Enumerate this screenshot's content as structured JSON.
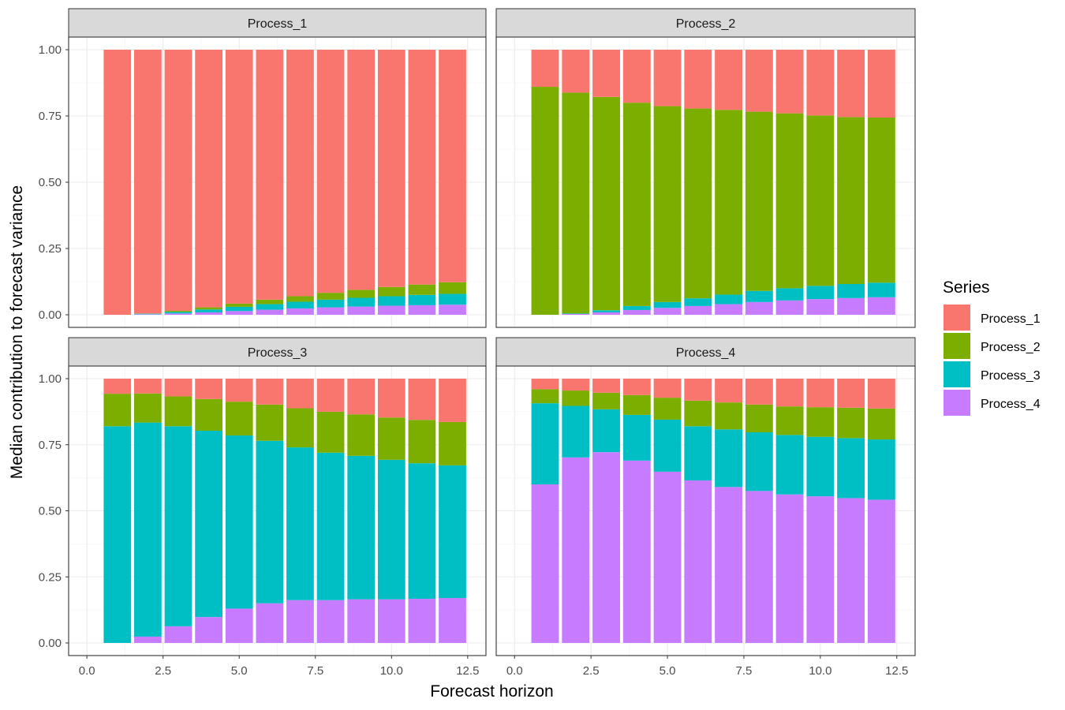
{
  "chart_data": {
    "type": "bar",
    "stacked": true,
    "facets": [
      "Process_1",
      "Process_2",
      "Process_3",
      "Process_4"
    ],
    "x": [
      1,
      2,
      3,
      4,
      5,
      6,
      7,
      8,
      9,
      10,
      11,
      12
    ],
    "xlim": [
      0,
      12.5
    ],
    "ylim": [
      0,
      1
    ],
    "xticks": [
      "0.0",
      "2.5",
      "5.0",
      "7.5",
      "10.0",
      "12.5"
    ],
    "xtick_values": [
      0,
      2.5,
      5,
      7.5,
      10,
      12.5
    ],
    "yticks": [
      "0.00",
      "0.25",
      "0.50",
      "0.75",
      "1.00"
    ],
    "ytick_values": [
      0,
      0.25,
      0.5,
      0.75,
      1
    ],
    "xlabel": "Forecast horizon",
    "ylabel": "Median contribution to forecast variance",
    "legend": {
      "title": "Series",
      "position": "right",
      "entries": [
        "Process_1",
        "Process_2",
        "Process_3",
        "Process_4"
      ]
    },
    "colors": {
      "Process_1": "#F8766D",
      "Process_2": "#7CAE00",
      "Process_3": "#00BFC4",
      "Process_4": "#C77CFF"
    },
    "panels": [
      {
        "title": "Process_1",
        "series": [
          {
            "name": "Process_4",
            "values": [
              0.0,
              0.002,
              0.005,
              0.009,
              0.014,
              0.019,
              0.024,
              0.028,
              0.031,
              0.034,
              0.036,
              0.038
            ]
          },
          {
            "name": "Process_3",
            "values": [
              0.0,
              0.002,
              0.006,
              0.011,
              0.016,
              0.021,
              0.025,
              0.029,
              0.033,
              0.036,
              0.039,
              0.041
            ]
          },
          {
            "name": "Process_2",
            "values": [
              0.0,
              0.001,
              0.004,
              0.008,
              0.012,
              0.017,
              0.021,
              0.026,
              0.03,
              0.035,
              0.039,
              0.044
            ]
          },
          {
            "name": "Process_1",
            "values": [
              1.0,
              0.995,
              0.985,
              0.972,
              0.958,
              0.943,
              0.93,
              0.917,
              0.906,
              0.895,
              0.886,
              0.877
            ]
          }
        ]
      },
      {
        "title": "Process_2",
        "series": [
          {
            "name": "Process_4",
            "values": [
              0.0,
              0.003,
              0.009,
              0.018,
              0.026,
              0.033,
              0.04,
              0.048,
              0.054,
              0.059,
              0.063,
              0.066
            ]
          },
          {
            "name": "Process_3",
            "values": [
              0.0,
              0.002,
              0.008,
              0.015,
              0.022,
              0.029,
              0.036,
              0.042,
              0.046,
              0.05,
              0.053,
              0.055
            ]
          },
          {
            "name": "Process_2",
            "values": [
              0.86,
              0.833,
              0.805,
              0.767,
              0.739,
              0.716,
              0.697,
              0.676,
              0.66,
              0.643,
              0.63,
              0.623
            ]
          },
          {
            "name": "Process_1",
            "values": [
              0.14,
              0.162,
              0.178,
              0.2,
              0.213,
              0.222,
              0.227,
              0.234,
              0.24,
              0.248,
              0.254,
              0.256
            ]
          }
        ]
      },
      {
        "title": "Process_3",
        "series": [
          {
            "name": "Process_4",
            "values": [
              0.0,
              0.024,
              0.063,
              0.098,
              0.13,
              0.15,
              0.162,
              0.162,
              0.165,
              0.165,
              0.167,
              0.17
            ]
          },
          {
            "name": "Process_3",
            "values": [
              0.82,
              0.81,
              0.757,
              0.705,
              0.655,
              0.615,
              0.578,
              0.558,
              0.543,
              0.528,
              0.513,
              0.502
            ]
          },
          {
            "name": "Process_2",
            "values": [
              0.123,
              0.11,
              0.113,
              0.12,
              0.128,
              0.137,
              0.148,
              0.155,
              0.157,
              0.16,
              0.164,
              0.164
            ]
          },
          {
            "name": "Process_1",
            "values": [
              0.057,
              0.056,
              0.067,
              0.077,
              0.087,
              0.098,
              0.112,
              0.125,
              0.135,
              0.147,
              0.156,
              0.164
            ]
          }
        ]
      },
      {
        "title": "Process_4",
        "series": [
          {
            "name": "Process_4",
            "values": [
              0.6,
              0.702,
              0.722,
              0.69,
              0.648,
              0.615,
              0.59,
              0.575,
              0.562,
              0.555,
              0.548,
              0.542
            ]
          },
          {
            "name": "Process_3",
            "values": [
              0.307,
              0.195,
              0.162,
              0.173,
              0.197,
              0.205,
              0.218,
              0.222,
              0.225,
              0.225,
              0.227,
              0.228
            ]
          },
          {
            "name": "Process_2",
            "values": [
              0.053,
              0.058,
              0.063,
              0.075,
              0.083,
              0.097,
              0.102,
              0.105,
              0.108,
              0.112,
              0.115,
              0.117
            ]
          },
          {
            "name": "Process_1",
            "values": [
              0.04,
              0.045,
              0.053,
              0.062,
              0.072,
              0.083,
              0.09,
              0.098,
              0.105,
              0.108,
              0.11,
              0.113
            ]
          }
        ]
      }
    ]
  }
}
